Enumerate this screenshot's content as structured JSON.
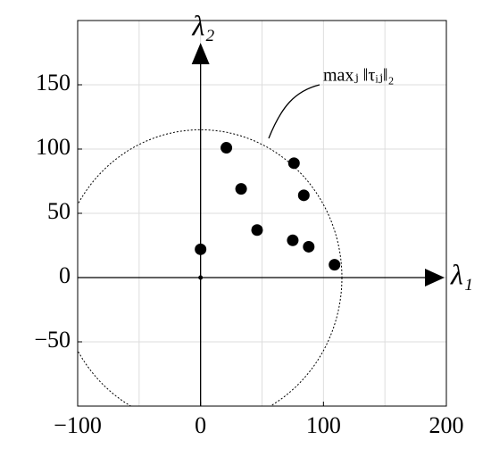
{
  "chart_data": {
    "type": "scatter",
    "x": [
      21,
      76,
      33,
      84,
      46,
      75,
      88,
      109,
      0
    ],
    "values": [
      101,
      89,
      69,
      64,
      37,
      29,
      24,
      10,
      22
    ],
    "color": "#000000",
    "xlim": [
      -100,
      200
    ],
    "ylim": [
      -100,
      200
    ],
    "xticks": [
      {
        "value": -100,
        "label": "−100"
      },
      0,
      100,
      200
    ],
    "yticks": [
      {
        "value": -50,
        "label": "−50"
      },
      0,
      50,
      100,
      150
    ],
    "grid": true,
    "grid_step": 50,
    "xlabel": "λ₁",
    "ylabel": "λ₂",
    "circle": {
      "center": [
        0,
        0
      ],
      "radius": 115
    },
    "annotation": "maxⱼ ‖τᵢⱼ‖₂"
  }
}
